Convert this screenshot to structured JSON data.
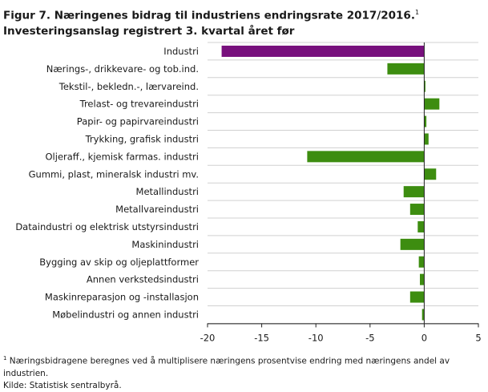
{
  "title": {
    "line1": "Figur 7. Næringenes bidrag til industriens endringsrate 2017/2016.",
    "line1_sup": "1",
    "line2": "Investeringsanslag registrert 3. kvartal året før"
  },
  "footnotes": {
    "note_sup": "1",
    "note": " Næringsbidragene beregnes ved å multiplisere næringens prosentvise endring med næringens andel av industrien.",
    "source": "Kilde: Statistisk sentralbyrå."
  },
  "colors": {
    "first_bar": "#78107d",
    "bars": "#3d8d10",
    "grid": "#d0d0d0",
    "axis": "#222222"
  },
  "chart_data": {
    "type": "bar",
    "orientation": "horizontal",
    "title": "Næringenes bidrag til industriens endringsrate 2017/2016. Investeringsanslag registrert 3. kvartal året før",
    "xlabel": "",
    "ylabel": "",
    "xlim": [
      -20,
      5
    ],
    "xticks": [
      -20,
      -15,
      -10,
      -5,
      0,
      5
    ],
    "grid": "horizontal",
    "categories": [
      "Industri",
      "Nærings-, drikkevare- og tob.ind.",
      "Tekstil-, bekledn.-, lærvareind.",
      "Trelast- og trevareindustri",
      "Papir- og papirvareindustri",
      "Trykking, grafisk industri",
      "Oljeraff., kjemisk farmas. industri",
      "Gummi, plast, mineralsk industri mv.",
      "Metallindustri",
      "Metallvareindustri",
      "Dataindustri og elektrisk utstyrsindustri",
      "Maskinindustri",
      "Bygging av skip og oljeplattformer",
      "Annen verkstedsindustri",
      "Maskinreparasjon og -installasjon",
      "Møbelindustri og annen industri"
    ],
    "values": [
      -18.7,
      -3.4,
      0.1,
      1.4,
      0.2,
      0.4,
      -10.8,
      1.1,
      -1.9,
      -1.3,
      -0.6,
      -2.2,
      -0.5,
      -0.4,
      -1.3,
      -0.2
    ]
  }
}
